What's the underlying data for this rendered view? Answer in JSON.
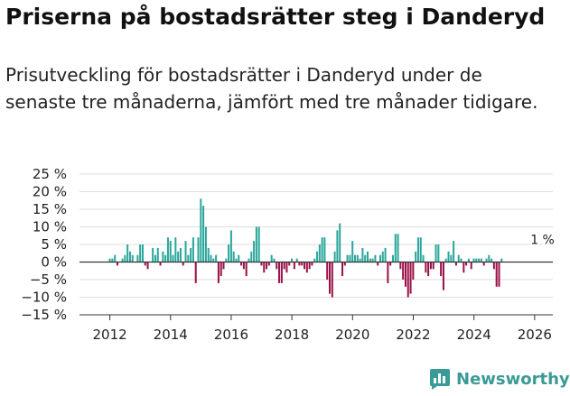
{
  "chart_data": {
    "type": "bar",
    "title": "Priserna på bostadsrätter steg i Danderyd",
    "subtitle": "Prisutveckling för bostadsrätter i Danderyd under de senaste tre månaderna, jämfört med tre månader tidigare.",
    "ylim": [
      -15,
      25
    ],
    "yticks": [
      -15,
      -10,
      -5,
      0,
      5,
      10,
      15,
      20,
      25
    ],
    "ytick_labels": [
      "−15 %",
      "−10 %",
      "−5 %",
      "0 %",
      "5 %",
      "10 %",
      "15 %",
      "20 %",
      "25 %"
    ],
    "xlim": [
      2011.0,
      2026.6
    ],
    "xticks": [
      2012,
      2014,
      2016,
      2018,
      2020,
      2022,
      2024,
      2026
    ],
    "xtick_labels": [
      "2012",
      "2014",
      "2016",
      "2018",
      "2020",
      "2022",
      "2024",
      "2026"
    ],
    "start_year": 2012,
    "bar_step_years": 0.0833,
    "positive_color": "#2aa69b",
    "negative_color": "#9b1148",
    "annotation": {
      "text": "1 %",
      "year": 2026.08,
      "value": 1
    },
    "values": [
      1,
      1,
      2,
      -1,
      0,
      1,
      2,
      5,
      3,
      2,
      0,
      2,
      5,
      5,
      -1,
      -2,
      0,
      4,
      2,
      4,
      -1,
      3,
      2,
      7,
      6,
      2,
      7,
      3,
      4,
      -1,
      6,
      2,
      4,
      7,
      -6,
      7,
      18,
      16,
      10,
      4,
      2,
      1,
      2,
      -6,
      -4,
      -2,
      1,
      5,
      9,
      3,
      1,
      2,
      -1,
      -2,
      -4,
      1,
      3,
      6,
      10,
      10,
      -1,
      -3,
      -2,
      -1,
      2,
      1,
      -2,
      -6,
      -6,
      -2,
      -3,
      -1,
      1,
      -2,
      1,
      -1,
      -1,
      -2,
      -3,
      -2,
      -1,
      1,
      3,
      5,
      7,
      7,
      -5,
      -9,
      -10,
      3,
      9,
      11,
      -4,
      -1,
      2,
      2,
      6,
      2,
      2,
      1,
      4,
      2,
      3,
      1,
      1,
      2,
      -1,
      2,
      3,
      4,
      -6,
      -1,
      2,
      8,
      8,
      -2,
      -5,
      -7,
      -10,
      -9,
      -5,
      3,
      7,
      7,
      2,
      -3,
      -4,
      -2,
      -2,
      5,
      5,
      -4,
      -8,
      1,
      3,
      2,
      6,
      -1,
      2,
      1,
      -3,
      -1,
      1,
      -2,
      1,
      1,
      1,
      1,
      -1,
      1,
      2,
      1,
      -2,
      -7,
      -7,
      1
    ]
  },
  "brand": {
    "name": "Newsworthy",
    "color": "#3a9a95"
  },
  "colors": {
    "grid": "#dddddd",
    "axis": "#333333",
    "text": "#222222"
  }
}
